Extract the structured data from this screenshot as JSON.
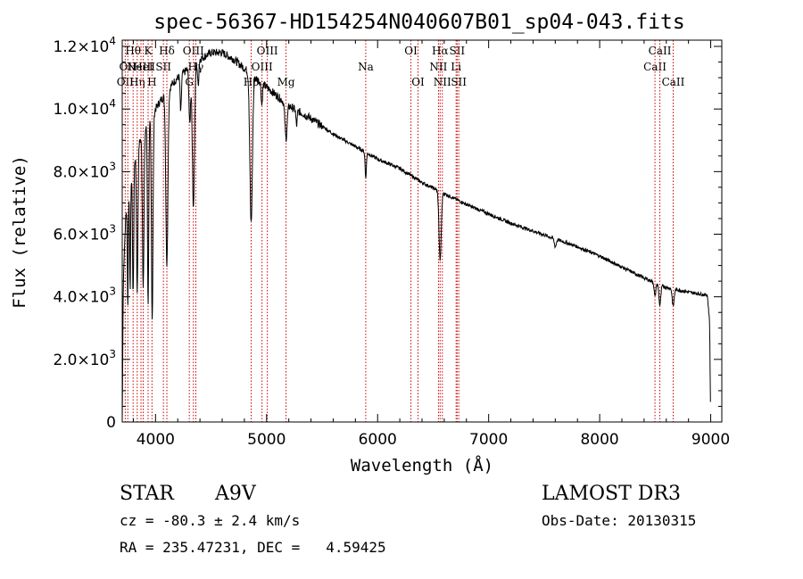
{
  "chart_data": {
    "type": "line",
    "title": "spec-56367-HD154254N040607B01_sp04-043.fits",
    "xlabel": "Wavelength (Å)",
    "ylabel": "Flux (relative)",
    "xlim": [
      3700,
      9100
    ],
    "ylim": [
      0,
      12200
    ],
    "x_ticks": [
      4000,
      5000,
      6000,
      7000,
      8000,
      9000
    ],
    "x_tick_labels": [
      "4000",
      "5000",
      "6000",
      "7000",
      "8000",
      "9000"
    ],
    "y_ticks": [
      0,
      2000,
      4000,
      6000,
      8000,
      10000,
      12000
    ],
    "y_tick_labels": [
      {
        "mantissa": "0",
        "exp": ""
      },
      {
        "mantissa": "2.0×10",
        "exp": "3"
      },
      {
        "mantissa": "4.0×10",
        "exp": "3"
      },
      {
        "mantissa": "6.0×10",
        "exp": "3"
      },
      {
        "mantissa": "8.0×10",
        "exp": "3"
      },
      {
        "mantissa": "1.0×10",
        "exp": "4"
      },
      {
        "mantissa": "1.2×10",
        "exp": "4"
      }
    ],
    "continuum": [
      [
        3700,
        0
      ],
      [
        3710,
        4500
      ],
      [
        3730,
        6500
      ],
      [
        3760,
        7500
      ],
      [
        3800,
        8300
      ],
      [
        3850,
        8900
      ],
      [
        3900,
        9300
      ],
      [
        3950,
        9700
      ],
      [
        4000,
        10000
      ],
      [
        4050,
        10300
      ],
      [
        4100,
        10500
      ],
      [
        4150,
        10800
      ],
      [
        4200,
        11000
      ],
      [
        4300,
        11300
      ],
      [
        4400,
        11600
      ],
      [
        4500,
        11800
      ],
      [
        4600,
        11800
      ],
      [
        4700,
        11600
      ],
      [
        4800,
        11300
      ],
      [
        4900,
        11000
      ],
      [
        5000,
        10700
      ],
      [
        5100,
        10400
      ],
      [
        5200,
        10100
      ],
      [
        5400,
        9700
      ],
      [
        5600,
        9200
      ],
      [
        5800,
        8800
      ],
      [
        6000,
        8400
      ],
      [
        6200,
        8100
      ],
      [
        6400,
        7650
      ],
      [
        6600,
        7300
      ],
      [
        6800,
        6950
      ],
      [
        7000,
        6650
      ],
      [
        7200,
        6350
      ],
      [
        7400,
        6100
      ],
      [
        7600,
        5850
      ],
      [
        7800,
        5600
      ],
      [
        8000,
        5300
      ],
      [
        8200,
        4950
      ],
      [
        8400,
        4600
      ],
      [
        8600,
        4300
      ],
      [
        8800,
        4150
      ],
      [
        8970,
        4050
      ],
      [
        8990,
        3200
      ],
      [
        9000,
        0
      ]
    ],
    "absorption_features": [
      {
        "center": 3750,
        "depth": 3500,
        "width": 6
      },
      {
        "center": 3771,
        "depth": 3500,
        "width": 6
      },
      {
        "center": 3798,
        "depth": 4200,
        "width": 8
      },
      {
        "center": 3835,
        "depth": 4500,
        "width": 9
      },
      {
        "center": 3889,
        "depth": 4800,
        "width": 10
      },
      {
        "center": 3933,
        "depth": 5800,
        "width": 8
      },
      {
        "center": 3970,
        "depth": 6500,
        "width": 10
      },
      {
        "center": 4102,
        "depth": 5500,
        "width": 13
      },
      {
        "center": 4227,
        "depth": 1200,
        "width": 8
      },
      {
        "center": 4308,
        "depth": 1800,
        "width": 10
      },
      {
        "center": 4341,
        "depth": 4500,
        "width": 14
      },
      {
        "center": 4384,
        "depth": 800,
        "width": 8
      },
      {
        "center": 4861,
        "depth": 4800,
        "width": 16
      },
      {
        "center": 4957,
        "depth": 700,
        "width": 8
      },
      {
        "center": 5175,
        "depth": 1100,
        "width": 14
      },
      {
        "center": 5270,
        "depth": 500,
        "width": 8
      },
      {
        "center": 5893,
        "depth": 800,
        "width": 8
      },
      {
        "center": 6563,
        "depth": 2200,
        "width": 14
      },
      {
        "center": 7600,
        "depth": 250,
        "width": 12
      },
      {
        "center": 8498,
        "depth": 450,
        "width": 10
      },
      {
        "center": 8542,
        "depth": 650,
        "width": 12
      },
      {
        "center": 8662,
        "depth": 550,
        "width": 12
      }
    ],
    "line_markers": [
      {
        "x": 3727,
        "label": "OII",
        "row": 2
      },
      {
        "x": 3750,
        "label": "OII",
        "row": 1
      },
      {
        "x": 3798,
        "label": "Hθ",
        "row": 0
      },
      {
        "x": 3835,
        "label": "Hη",
        "row": 2
      },
      {
        "x": 3869,
        "label": "NeIII",
        "row": 1
      },
      {
        "x": 3889,
        "label": "HeI",
        "row": 1
      },
      {
        "x": 3933,
        "label": "K",
        "row": 0
      },
      {
        "x": 3968,
        "label": "H",
        "row": 2
      },
      {
        "x": 4071,
        "label": "SII",
        "row": 1
      },
      {
        "x": 4102,
        "label": "Hδ",
        "row": 0
      },
      {
        "x": 4304,
        "label": "G",
        "row": 2
      },
      {
        "x": 4341,
        "label": "OIII",
        "row": 0
      },
      {
        "x": 4363,
        "label": "Hγ",
        "row": 1
      },
      {
        "x": 4861,
        "label": "Hβ",
        "row": 2
      },
      {
        "x": 4959,
        "label": "OIII",
        "row": 1
      },
      {
        "x": 5007,
        "label": "OIII",
        "row": 0
      },
      {
        "x": 5175,
        "label": "Mg",
        "row": 2
      },
      {
        "x": 5893,
        "label": "Na",
        "row": 1
      },
      {
        "x": 6300,
        "label": "OI",
        "row": 0
      },
      {
        "x": 6364,
        "label": "OI",
        "row": 2
      },
      {
        "x": 6548,
        "label": "NII",
        "row": 1
      },
      {
        "x": 6563,
        "label": "Hα",
        "row": 0
      },
      {
        "x": 6583,
        "label": "NII",
        "row": 2
      },
      {
        "x": 6707,
        "label": "Li",
        "row": 1
      },
      {
        "x": 6716,
        "label": "SII",
        "row": 0
      },
      {
        "x": 6731,
        "label": "SII",
        "row": 2
      },
      {
        "x": 8498,
        "label": "CaII",
        "row": 1
      },
      {
        "x": 8542,
        "label": "CaII",
        "row": 0
      },
      {
        "x": 8662,
        "label": "CaII",
        "row": 2
      }
    ]
  },
  "info": {
    "object_class": "STAR",
    "subclass": "A9V",
    "survey": "LAMOST DR3",
    "velocity": "cz = -80.3 ± 2.4 km/s",
    "obs_date": "Obs-Date: 20130315",
    "coords": "RA = 235.47231, DEC =   4.59425"
  },
  "colors": {
    "spectrum": "#000000",
    "marker": "#cc0000",
    "background": "#ffffff"
  }
}
